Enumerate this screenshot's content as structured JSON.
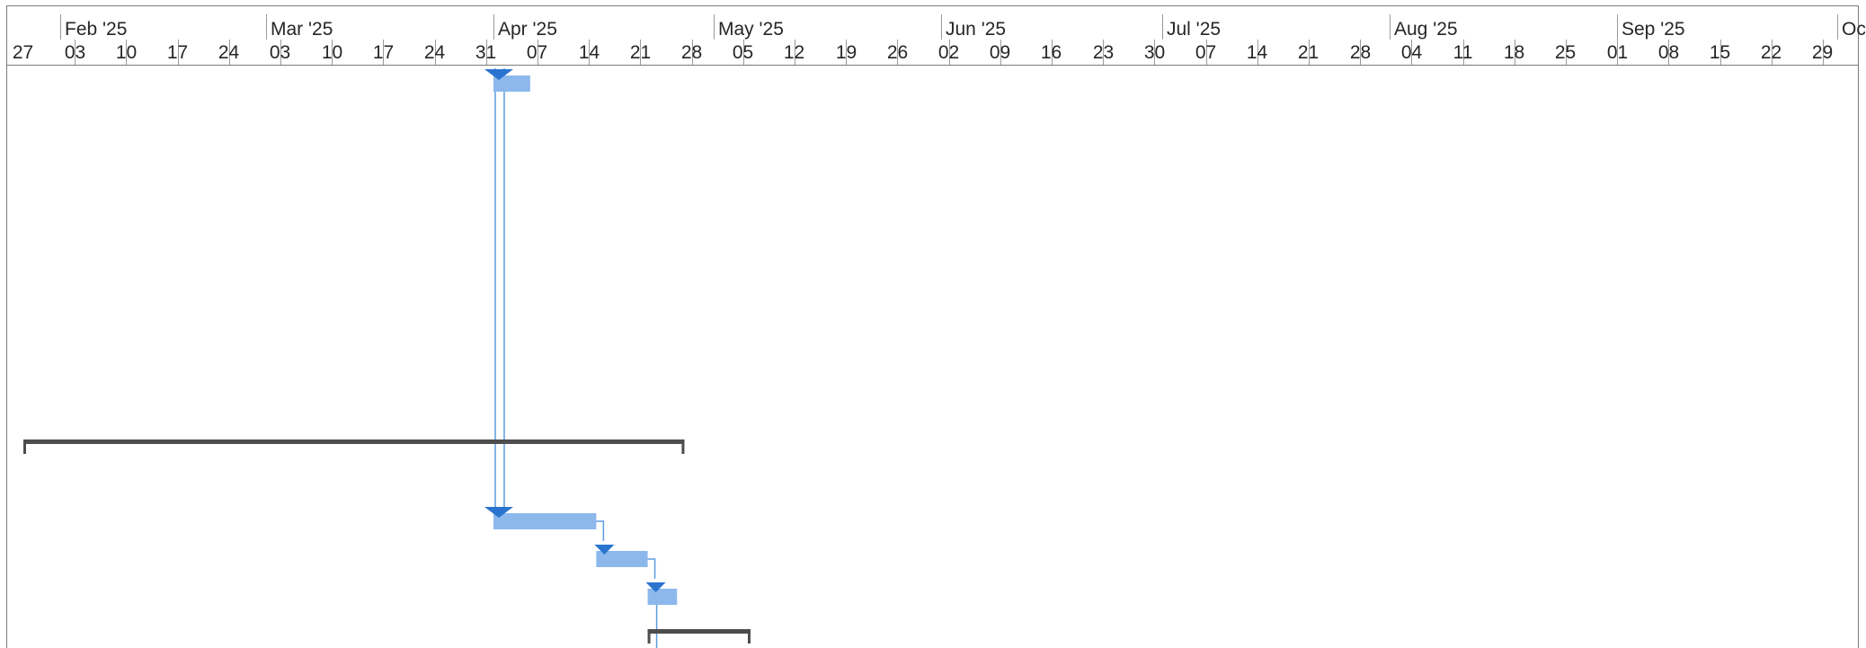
{
  "timescale": {
    "months": [
      {
        "label": "Feb '25"
      },
      {
        "label": "Mar '25"
      },
      {
        "label": "Apr '25"
      },
      {
        "label": "May '25"
      },
      {
        "label": "Jun '25"
      },
      {
        "label": "Jul '25"
      },
      {
        "label": "Aug '25"
      },
      {
        "label": "Sep '25"
      },
      {
        "label": "Oct"
      }
    ],
    "weeks": [
      "27",
      "03",
      "10",
      "17",
      "24",
      "03",
      "10",
      "17",
      "24",
      "31",
      "07",
      "14",
      "21",
      "28",
      "05",
      "12",
      "19",
      "26",
      "02",
      "09",
      "16",
      "23",
      "30",
      "07",
      "14",
      "21",
      "28",
      "04",
      "11",
      "18",
      "25",
      "01",
      "08",
      "15",
      "22",
      "29"
    ]
  },
  "tasks": [
    {
      "row": "task-row-1",
      "type": "task",
      "start": "2025-04-01",
      "end": "2025-04-06",
      "has_start_marker": true
    },
    {
      "row": "summary-row-1",
      "type": "summary",
      "start": "2025-01-27",
      "end": "2025-04-27"
    },
    {
      "row": "task-row-2",
      "type": "task",
      "start": "2025-04-01",
      "end": "2025-04-15",
      "has_start_marker": true
    },
    {
      "row": "task-row-3",
      "type": "task",
      "start": "2025-04-15",
      "end": "2025-04-22",
      "has_start_marker": true
    },
    {
      "row": "task-row-4",
      "type": "task",
      "start": "2025-04-22",
      "end": "2025-04-26",
      "has_start_marker": true
    },
    {
      "row": "summary-row-2",
      "type": "summary",
      "start": "2025-04-22",
      "end": "2025-05-06"
    }
  ],
  "colors": {
    "task_bar": "#8cb8ec",
    "link_line": "#5b9be0",
    "marker": "#2a74cf",
    "summary_bar": "#4d4d4d",
    "grid": "#9a9a9a"
  }
}
